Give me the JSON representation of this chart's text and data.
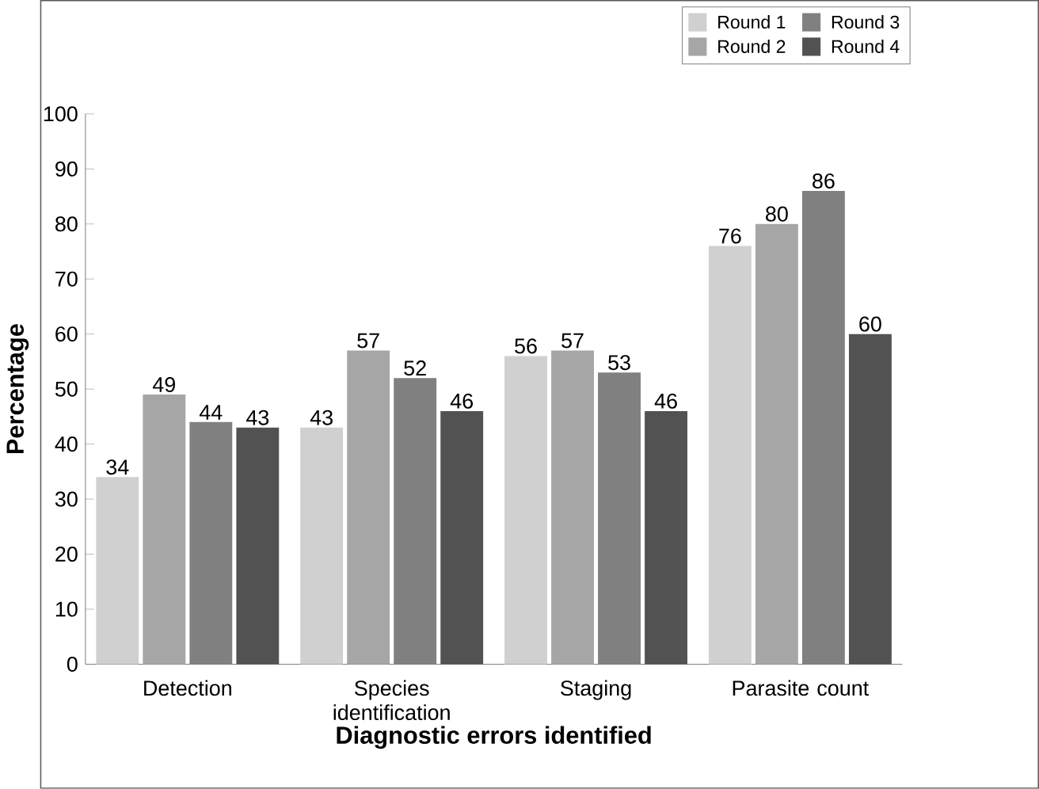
{
  "chart_data": {
    "type": "bar",
    "xlabel": "Diagnostic errors identified",
    "ylabel": "Percentage",
    "categories": [
      "Detection",
      "Species identification",
      "Staging",
      "Parasite count"
    ],
    "series": [
      {
        "name": "Round 1",
        "color": "#d0d0d0",
        "values": [
          34,
          43,
          56,
          76
        ]
      },
      {
        "name": "Round 2",
        "color": "#a6a6a6",
        "values": [
          49,
          57,
          57,
          80
        ]
      },
      {
        "name": "Round 3",
        "color": "#808080",
        "values": [
          44,
          52,
          53,
          86
        ]
      },
      {
        "name": "Round 4",
        "color": "#525252",
        "values": [
          43,
          46,
          46,
          60
        ]
      }
    ],
    "ylim": [
      0,
      100
    ],
    "yticks": [
      0,
      10,
      20,
      30,
      40,
      50,
      60,
      70,
      80,
      90,
      100
    ],
    "data_labels": true,
    "legend": "top right",
    "grid": false
  }
}
